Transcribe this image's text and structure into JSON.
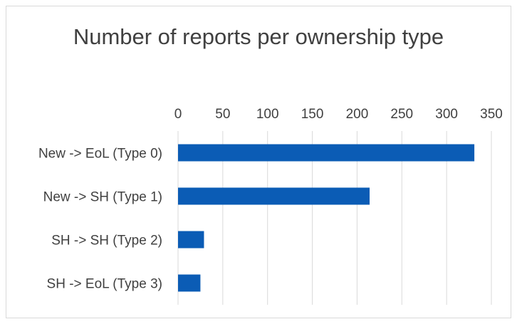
{
  "chart_data": {
    "type": "bar",
    "orientation": "horizontal",
    "title": "Number of reports per ownership type",
    "categories": [
      "New -> EoL (Type 0)",
      "New -> SH (Type 1)",
      "SH -> SH (Type 2)",
      "SH -> EoL (Type 3)"
    ],
    "values": [
      331,
      214,
      29,
      25
    ],
    "xlabel": "",
    "ylabel": "",
    "xlim": [
      0,
      350
    ],
    "x_ticks": [
      0,
      50,
      100,
      150,
      200,
      250,
      300,
      350
    ],
    "x_axis_position": "top",
    "grid": true,
    "legend": "none",
    "bar_color": "#0b5cb5",
    "gridline_color": "#d9d9d9"
  }
}
